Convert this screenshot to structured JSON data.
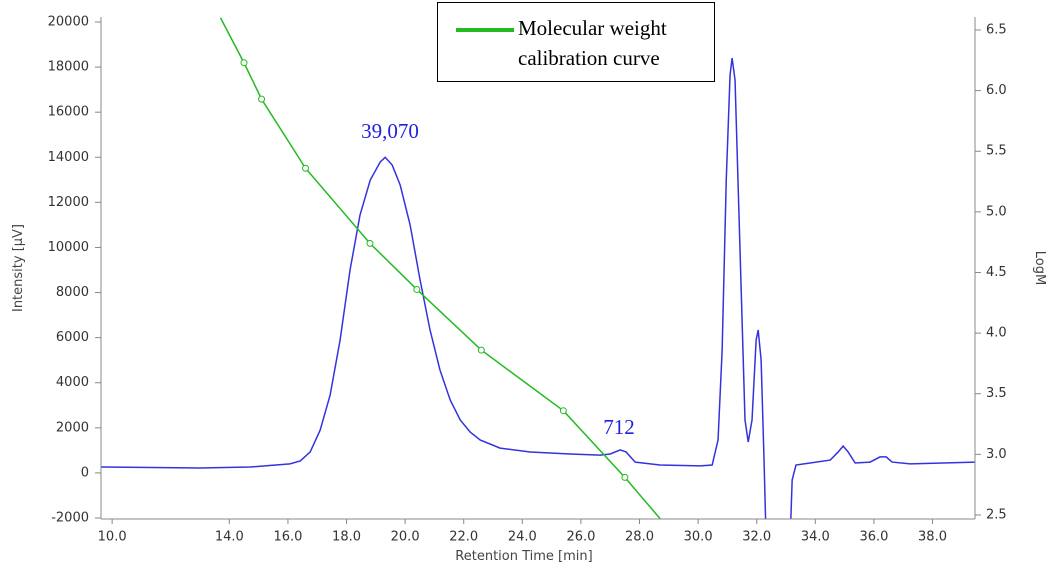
{
  "chart_data": {
    "type": "line",
    "xlabel": "Retention Time [min]",
    "ylabel": "Intensity [µV]",
    "y2label": "LogM",
    "xlim": [
      9.62,
      39.45
    ],
    "xticks": [
      {
        "value": 10,
        "label": "10.0"
      },
      {
        "value": 14,
        "label": "14.0"
      },
      {
        "value": 16,
        "label": "16.0"
      },
      {
        "value": 18,
        "label": "18.0"
      },
      {
        "value": 20,
        "label": "20.0"
      },
      {
        "value": 22,
        "label": "22.0"
      },
      {
        "value": 24,
        "label": "24.0"
      },
      {
        "value": 26,
        "label": "26.0"
      },
      {
        "value": 28,
        "label": "28.0"
      },
      {
        "value": 30,
        "label": "30.0"
      },
      {
        "value": 32,
        "label": "32.0"
      },
      {
        "value": 34,
        "label": "34.0"
      },
      {
        "value": 36,
        "label": "36.0"
      },
      {
        "value": 38,
        "label": "38.0"
      }
    ],
    "ylim": [
      -2000,
      20000
    ],
    "yticks": [
      -2000,
      0,
      2000,
      4000,
      6000,
      8000,
      10000,
      12000,
      14000,
      16000,
      18000,
      20000
    ],
    "y2lim": [
      2.475,
      6.566
    ],
    "y2ticks": [
      2.5,
      {
        "value": 3,
        "label": "3.0"
      },
      3.5,
      {
        "value": 4,
        "label": "4.0"
      },
      4.5,
      {
        "value": 5,
        "label": "5.0"
      },
      5.5,
      {
        "value": 6,
        "label": "6.0"
      },
      6.5
    ],
    "grid": false,
    "legend": "top",
    "annotations": [
      "39,070",
      "712"
    ],
    "series": [
      {
        "color": "#3333dd",
        "x": [
          9.62,
          13.0,
          14.71,
          16.07,
          16.42,
          16.76,
          17.1,
          17.44,
          17.78,
          18.12,
          18.46,
          18.81,
          19.15,
          19.32,
          19.56,
          19.83,
          20.17,
          20.51,
          20.85,
          21.19,
          21.54,
          21.88,
          22.22,
          22.56,
          23.24,
          24.27,
          25.63,
          26.66,
          27.0,
          27.34,
          27.54,
          27.85,
          28.7,
          30.07,
          30.48,
          30.68,
          30.82,
          30.96,
          31.09,
          31.16,
          31.26,
          31.43,
          31.6,
          31.71,
          31.84,
          31.98,
          32.05,
          32.15,
          32.25,
          32.32,
          33.14,
          33.21,
          33.34,
          33.82,
          34.51,
          34.78,
          34.95,
          35.12,
          35.36,
          35.87,
          36.21,
          36.42,
          36.62,
          37.24,
          39.45
        ],
        "values": [
          260,
          220,
          260,
          400,
          530,
          930,
          1900,
          3450,
          5890,
          9000,
          11440,
          12990,
          13790,
          14000,
          13650,
          12770,
          11000,
          8560,
          6340,
          4560,
          3230,
          2350,
          1810,
          1460,
          1100,
          930,
          840,
          790,
          840,
          1020,
          930,
          480,
          350,
          310,
          350,
          1460,
          5450,
          12990,
          17650,
          18400,
          17430,
          9890,
          2350,
          1370,
          2350,
          5890,
          6340,
          5010,
          570,
          -2980,
          -2980,
          -310,
          350,
          440,
          570,
          930,
          1190,
          930,
          440,
          480,
          710,
          710,
          480,
          400,
          480
        ]
      },
      {
        "name": "Molecular weight calibration curve",
        "color": "#22bb22",
        "axis": "y2",
        "x": [
          13.7,
          14.5,
          15.1,
          16.6,
          18.8,
          20.4,
          22.6,
          25.4,
          27.5,
          28.7
        ],
        "values": [
          6.6,
          6.23,
          5.93,
          5.36,
          4.74,
          4.36,
          3.86,
          3.36,
          2.81,
          2.47
        ]
      },
      {
        "color": "#22bb22",
        "axis": "y2",
        "marker": "circle",
        "x": [
          14.5,
          15.1,
          16.6,
          18.8,
          20.4,
          22.6,
          25.4,
          27.5
        ],
        "values": [
          6.23,
          5.93,
          5.36,
          4.74,
          4.36,
          3.86,
          3.36,
          2.81
        ]
      }
    ]
  }
}
